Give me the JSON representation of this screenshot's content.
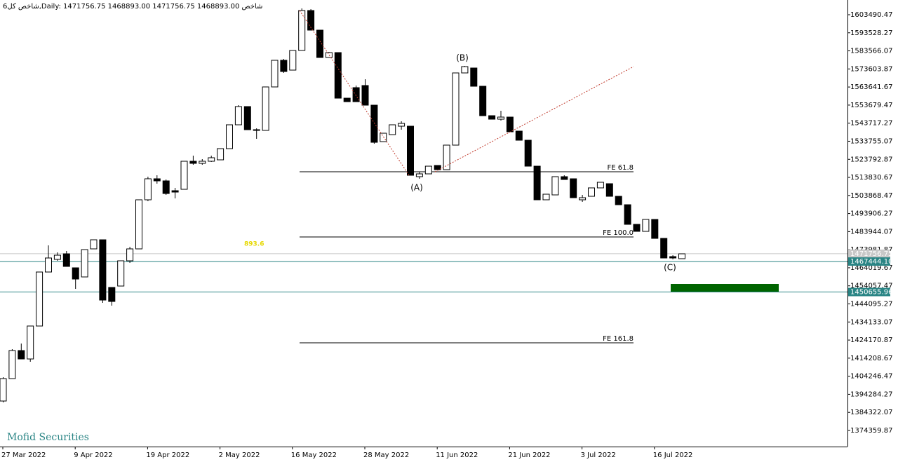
{
  "chart_data": {
    "type": "candlestick",
    "title": "شاخص کل6,Daily:  1471756.75 1468893.00 1471756.75 1468893.00  شاخص",
    "categories": [
      "27 Mar 2022",
      null,
      null,
      null,
      null,
      null,
      null,
      null,
      "9 Apr 2022",
      null,
      null,
      null,
      null,
      null,
      null,
      null,
      "19 Apr 2022",
      null,
      null,
      null,
      null,
      null,
      null,
      null,
      "2 May 2022",
      null,
      null,
      null,
      null,
      null,
      null,
      null,
      "16 May 2022",
      null,
      null,
      null,
      null,
      null,
      null,
      null,
      "28 May 2022",
      null,
      null,
      null,
      null,
      null,
      null,
      null,
      "11 Jun 2022",
      null,
      null,
      null,
      null,
      null,
      null,
      null,
      "21 Jun 2022",
      null,
      null,
      null,
      null,
      null,
      null,
      null,
      "3 Jul 2022",
      null,
      null,
      null,
      null,
      null,
      null,
      null,
      "16 Jul 2022",
      null,
      null,
      null
    ],
    "open": [
      1390580,
      1402940,
      1418400,
      1413760,
      1431920,
      1461680,
      1468630,
      1471720,
      1464000,
      1458970,
      1474430,
      1479450,
      1453180,
      1453950,
      1467860,
      1474430,
      1501480,
      1513070,
      1511910,
      1506500,
      1507270,
      1522730,
      1521570,
      1522730,
      1523500,
      1529680,
      1542820,
      1552870,
      1540120,
      1539730,
      1563690,
      1578370,
      1572960,
      1583780,
      1605800,
      1594990,
      1579920,
      1582620,
      1557500,
      1563300,
      1564460,
      1553640,
      1533550,
      1537410,
      1542050,
      1542050,
      1514230,
      1515770,
      1520410,
      1518090,
      1531620,
      1571410,
      1574120,
      1564070,
      1547840,
      1545910,
      1547070,
      1539340,
      1534320,
      1520020,
      1501480,
      1504180,
      1514230,
      1513070,
      1501480,
      1503410,
      1508050,
      1510360,
      1503410,
      1498770,
      1487950,
      1484090,
      1490660,
      1480220,
      1470180,
      1469020
    ],
    "high": [
      1403720,
      1419170,
      1422260,
      1431920,
      1461680,
      1476360,
      1472500,
      1473270,
      1464000,
      1474040,
      1479450,
      1479450,
      1453180,
      1467860,
      1475590,
      1501480,
      1514230,
      1515000,
      1512680,
      1508050,
      1522730,
      1525820,
      1523890,
      1525820,
      1529680,
      1542820,
      1553640,
      1552870,
      1540890,
      1563690,
      1578370,
      1579140,
      1583780,
      1606960,
      1606580,
      1594990,
      1583010,
      1582620,
      1557500,
      1564460,
      1567940,
      1553640,
      1538180,
      1542820,
      1544750,
      1542050,
      1516930,
      1520020,
      1520410,
      1531620,
      1571410,
      1575280,
      1574120,
      1564070,
      1547840,
      1550550,
      1547070,
      1539340,
      1534320,
      1520020,
      1504570,
      1514230,
      1515000,
      1513070,
      1504180,
      1508050,
      1511140,
      1510360,
      1503410,
      1498770,
      1487950,
      1490660,
      1490660,
      1480220,
      1470950,
      1471720
    ],
    "low": [
      1389810,
      1402940,
      1413760,
      1412220,
      1431920,
      1461680,
      1467860,
      1464770,
      1452400,
      1458970,
      1474430,
      1444680,
      1443130,
      1453950,
      1466700,
      1474430,
      1500700,
      1510360,
      1504180,
      1502250,
      1507270,
      1520800,
      1520800,
      1522340,
      1523500,
      1529680,
      1542820,
      1540120,
      1535090,
      1539730,
      1563690,
      1571410,
      1572960,
      1583780,
      1594990,
      1579920,
      1579920,
      1557500,
      1555570,
      1555570,
      1553640,
      1532390,
      1533550,
      1537410,
      1540120,
      1515000,
      1513070,
      1515770,
      1518090,
      1518090,
      1531620,
      1571410,
      1564070,
      1547840,
      1545910,
      1545140,
      1538960,
      1534320,
      1520020,
      1501480,
      1501480,
      1504180,
      1512680,
      1502640,
      1500320,
      1503410,
      1508050,
      1503410,
      1498770,
      1487950,
      1484090,
      1484090,
      1480220,
      1469410,
      1468630,
      1469020
    ],
    "close": [
      1402940,
      1418400,
      1413760,
      1431920,
      1461680,
      1469410,
      1470950,
      1464770,
      1457810,
      1474040,
      1479450,
      1446220,
      1445450,
      1467860,
      1474430,
      1501480,
      1513070,
      1511910,
      1504950,
      1505730,
      1522730,
      1521570,
      1522730,
      1524660,
      1529680,
      1542820,
      1552870,
      1540120,
      1539730,
      1563690,
      1578370,
      1572190,
      1583780,
      1605800,
      1594990,
      1579920,
      1582620,
      1557500,
      1555570,
      1555570,
      1553640,
      1533160,
      1538180,
      1542820,
      1543590,
      1515000,
      1515770,
      1520020,
      1518090,
      1531620,
      1571410,
      1574890,
      1564070,
      1547840,
      1545910,
      1547070,
      1538960,
      1534320,
      1520020,
      1501480,
      1504570,
      1514230,
      1512680,
      1502640,
      1502640,
      1508050,
      1511140,
      1503410,
      1498770,
      1487950,
      1484090,
      1490660,
      1480220,
      1469410,
      1469410,
      1471720
    ],
    "up_color": "#ffffff",
    "down_color": "#000000",
    "ylim": [
      1365470,
      1611600
    ],
    "yticks": [
      1603490.47,
      1593528.27,
      1583566.07,
      1573603.87,
      1563641.67,
      1553679.47,
      1543717.27,
      1533755.07,
      1523792.87,
      1513830.67,
      1503868.47,
      1493906.27,
      1483944.07,
      1473981.87,
      1464019.67,
      1454057.47,
      1444095.27,
      1434133.07,
      1424170.87,
      1414208.67,
      1404246.47,
      1394284.27,
      1384322.07,
      1374359.87
    ],
    "grid": false,
    "levels": [
      {
        "value": 1516930,
        "label": "FE 61.8"
      },
      {
        "value": 1481000,
        "label": "FE 100.0"
      },
      {
        "value": 1422650,
        "label": "FE 161.8"
      }
    ],
    "price_lines": [
      {
        "value": 1471756.75,
        "color": "#c8c8c8"
      },
      {
        "value": 1467444.1,
        "label": "1467444.10",
        "color": "#2a8585"
      },
      {
        "value": 1450655.96,
        "color": "#2a8585"
      }
    ],
    "zone": {
      "values": [
        1450655.96,
        1455110
      ],
      "color": "#006400"
    },
    "wave_labels": [
      "(A)",
      "(B)",
      "(C)"
    ],
    "note": "893.6",
    "watermark": "Mofid Securities"
  }
}
